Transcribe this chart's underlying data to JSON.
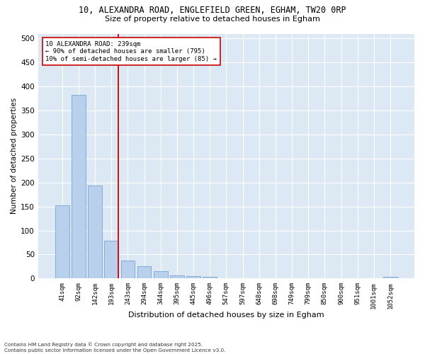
{
  "title_line1": "10, ALEXANDRA ROAD, ENGLEFIELD GREEN, EGHAM, TW20 0RP",
  "title_line2": "Size of property relative to detached houses in Egham",
  "xlabel": "Distribution of detached houses by size in Egham",
  "ylabel": "Number of detached properties",
  "bar_labels": [
    "41sqm",
    "92sqm",
    "142sqm",
    "193sqm",
    "243sqm",
    "294sqm",
    "344sqm",
    "395sqm",
    "445sqm",
    "496sqm",
    "547sqm",
    "597sqm",
    "648sqm",
    "698sqm",
    "749sqm",
    "799sqm",
    "850sqm",
    "900sqm",
    "951sqm",
    "1001sqm",
    "1052sqm"
  ],
  "bar_values": [
    152,
    382,
    193,
    79,
    38,
    25,
    15,
    6,
    5,
    4,
    0,
    0,
    0,
    0,
    0,
    0,
    0,
    0,
    0,
    0,
    3
  ],
  "bar_color": "#b8d0eb",
  "bar_edgecolor": "#6699cc",
  "background_color": "#dce9f5",
  "grid_color": "#ffffff",
  "vline_x": 3.42,
  "vline_color": "#cc0000",
  "annotation_text": "10 ALEXANDRA ROAD: 239sqm\n← 90% of detached houses are smaller (795)\n10% of semi-detached houses are larger (85) →",
  "annotation_box_edgecolor": "#cc0000",
  "ylim": [
    0,
    510
  ],
  "yticks": [
    0,
    50,
    100,
    150,
    200,
    250,
    300,
    350,
    400,
    450,
    500
  ],
  "footnote": "Contains HM Land Registry data © Crown copyright and database right 2025.\nContains public sector information licensed under the Open Government Licence v3.0.",
  "figsize": [
    6.0,
    5.0
  ],
  "dpi": 100
}
